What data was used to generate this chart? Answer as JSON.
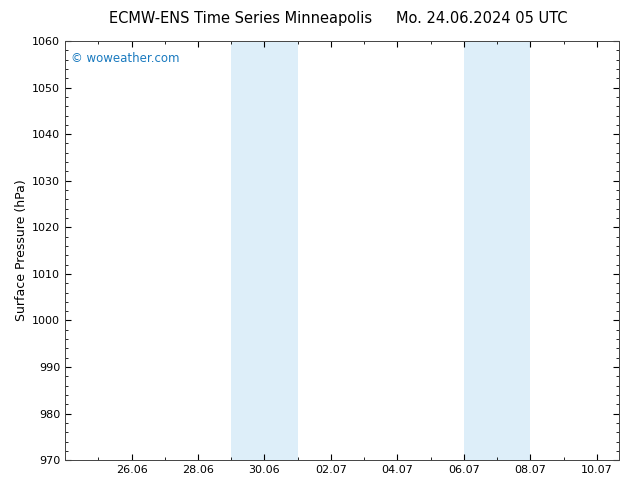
{
  "title_left": "ECMW-ENS Time Series Minneapolis",
  "title_right": "Mo. 24.06.2024 05 UTC",
  "ylabel": "Surface Pressure (hPa)",
  "ylim": [
    970,
    1060
  ],
  "yticks": [
    970,
    980,
    990,
    1000,
    1010,
    1020,
    1030,
    1040,
    1050,
    1060
  ],
  "xtick_labels": [
    "26.06",
    "28.06",
    "30.06",
    "02.07",
    "04.07",
    "06.07",
    "08.07",
    "10.07"
  ],
  "xtick_positions": [
    2,
    4,
    6,
    8,
    10,
    12,
    14,
    16
  ],
  "xlim": [
    0,
    16.67
  ],
  "shaded_bands": [
    {
      "x_start": 5.0,
      "x_end": 6.0
    },
    {
      "x_start": 6.0,
      "x_end": 7.0
    },
    {
      "x_start": 12.0,
      "x_end": 13.0
    },
    {
      "x_start": 13.0,
      "x_end": 14.0
    }
  ],
  "shaded_color": "#ddeef9",
  "watermark_text": "© woweather.com",
  "watermark_color": "#1a7abf",
  "background_color": "#ffffff",
  "title_fontsize": 10.5,
  "axis_fontsize": 9,
  "tick_fontsize": 8,
  "border_color": "#444444"
}
